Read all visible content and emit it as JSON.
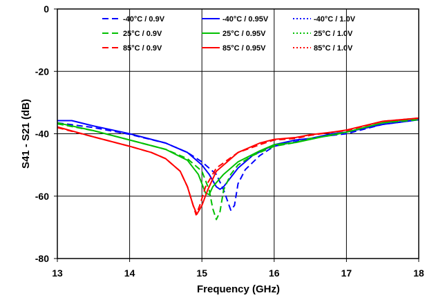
{
  "chart_data": {
    "type": "line",
    "title": "",
    "xlabel": "Frequency (GHz)",
    "ylabel": "S41 - S21 (dB)",
    "xlim": [
      13,
      18
    ],
    "ylim": [
      -80,
      0
    ],
    "x_ticks": [
      13,
      14,
      15,
      16,
      17,
      18
    ],
    "y_ticks": [
      0,
      -20,
      -40,
      -60,
      -80
    ],
    "x_tick_labels": [
      "13",
      "14",
      "15",
      "16",
      "17",
      "18"
    ],
    "y_tick_labels": [
      "0",
      "-20",
      "-40",
      "-60",
      "-80"
    ],
    "grid": true,
    "legend_position": "top",
    "series": [
      {
        "name": "-40°C / 0.9V",
        "color": "#0000ff",
        "dash": "dashed",
        "points": [
          [
            13,
            -36.5
          ],
          [
            13.5,
            -38
          ],
          [
            14,
            -40.2
          ],
          [
            14.5,
            -43
          ],
          [
            14.8,
            -46
          ],
          [
            15,
            -49
          ],
          [
            15.2,
            -53
          ],
          [
            15.3,
            -58
          ],
          [
            15.4,
            -64.5
          ],
          [
            15.45,
            -63
          ],
          [
            15.5,
            -56
          ],
          [
            15.6,
            -51.5
          ],
          [
            15.8,
            -47
          ],
          [
            16,
            -44
          ],
          [
            16.3,
            -42.5
          ],
          [
            16.5,
            -41.5
          ],
          [
            16.8,
            -40.5
          ],
          [
            17,
            -40
          ],
          [
            17.5,
            -37
          ],
          [
            18,
            -35.5
          ]
        ]
      },
      {
        "name": "-40°C / 0.95V",
        "color": "#0000ff",
        "dash": "solid",
        "points": [
          [
            13,
            -35.8
          ],
          [
            13.2,
            -35.8
          ],
          [
            13.5,
            -37.5
          ],
          [
            14,
            -40
          ],
          [
            14.5,
            -43
          ],
          [
            14.8,
            -46
          ],
          [
            15,
            -50
          ],
          [
            15.1,
            -53
          ],
          [
            15.15,
            -55
          ],
          [
            15.2,
            -57
          ],
          [
            15.25,
            -57.8
          ],
          [
            15.3,
            -57
          ],
          [
            15.4,
            -54
          ],
          [
            15.5,
            -51
          ],
          [
            15.7,
            -47
          ],
          [
            16,
            -43.5
          ],
          [
            16.3,
            -42
          ],
          [
            16.5,
            -41.5
          ],
          [
            16.8,
            -40
          ],
          [
            17,
            -39.5
          ],
          [
            17.5,
            -37
          ],
          [
            18,
            -35.5
          ]
        ]
      },
      {
        "name": "-40°C / 1.0V",
        "color": "#0000ff",
        "dash": "dotted",
        "points": []
      },
      {
        "name": "25°C / 0.9V",
        "color": "#00c000",
        "dash": "dashed",
        "points": [
          [
            13,
            -36.8
          ],
          [
            13.5,
            -39
          ],
          [
            14,
            -42
          ],
          [
            14.5,
            -45
          ],
          [
            14.8,
            -48
          ],
          [
            15,
            -52
          ],
          [
            15.1,
            -58
          ],
          [
            15.15,
            -64
          ],
          [
            15.2,
            -67.5
          ],
          [
            15.25,
            -65
          ],
          [
            15.3,
            -58
          ],
          [
            15.4,
            -53
          ],
          [
            15.5,
            -50
          ],
          [
            15.7,
            -47
          ],
          [
            16,
            -44
          ],
          [
            16.3,
            -42.8
          ],
          [
            16.5,
            -41.5
          ],
          [
            16.8,
            -40.5
          ],
          [
            17,
            -39.5
          ],
          [
            17.5,
            -36.5
          ],
          [
            18,
            -35.5
          ]
        ]
      },
      {
        "name": "25°C / 0.95V",
        "color": "#00c000",
        "dash": "solid",
        "points": [
          [
            13,
            -36.5
          ],
          [
            13.5,
            -39
          ],
          [
            14,
            -42
          ],
          [
            14.5,
            -45
          ],
          [
            14.8,
            -48.5
          ],
          [
            14.95,
            -53
          ],
          [
            15.05,
            -59
          ],
          [
            15.1,
            -59.5
          ],
          [
            15.15,
            -57
          ],
          [
            15.3,
            -53
          ],
          [
            15.5,
            -49
          ],
          [
            15.8,
            -45.5
          ],
          [
            16,
            -43.5
          ],
          [
            16.3,
            -42.8
          ],
          [
            16.5,
            -41.8
          ],
          [
            16.8,
            -40.3
          ],
          [
            17,
            -39.5
          ],
          [
            17.5,
            -36.5
          ],
          [
            18,
            -35
          ]
        ]
      },
      {
        "name": "25°C / 1.0V",
        "color": "#00c000",
        "dash": "dotted",
        "points": []
      },
      {
        "name": "85°C / 0.9V",
        "color": "#ff0000",
        "dash": "dashed",
        "points": [
          [
            13,
            -38
          ],
          [
            13.5,
            -41
          ],
          [
            14,
            -44
          ],
          [
            14.3,
            -46
          ],
          [
            14.5,
            -48
          ],
          [
            14.7,
            -52
          ],
          [
            14.8,
            -57
          ],
          [
            14.88,
            -63
          ],
          [
            14.92,
            -66
          ],
          [
            14.97,
            -63
          ],
          [
            15.05,
            -57
          ],
          [
            15.2,
            -51
          ],
          [
            15.5,
            -46
          ],
          [
            15.8,
            -43.5
          ],
          [
            16,
            -42
          ],
          [
            16.3,
            -41.5
          ],
          [
            16.5,
            -40.5
          ],
          [
            16.8,
            -39.5
          ],
          [
            17,
            -39
          ],
          [
            17.5,
            -36
          ],
          [
            18,
            -35
          ]
        ]
      },
      {
        "name": "85°C / 0.95V",
        "color": "#ff0000",
        "dash": "solid",
        "points": [
          [
            13,
            -37.8
          ],
          [
            13.5,
            -41
          ],
          [
            14,
            -44
          ],
          [
            14.3,
            -46
          ],
          [
            14.5,
            -48
          ],
          [
            14.7,
            -52
          ],
          [
            14.8,
            -57
          ],
          [
            14.88,
            -63
          ],
          [
            14.93,
            -65.8
          ],
          [
            15,
            -63
          ],
          [
            15.08,
            -58
          ],
          [
            15.2,
            -52
          ],
          [
            15.5,
            -46
          ],
          [
            15.8,
            -43
          ],
          [
            16,
            -41.8
          ],
          [
            16.3,
            -41.2
          ],
          [
            16.5,
            -40.3
          ],
          [
            16.8,
            -39.5
          ],
          [
            17,
            -38.8
          ],
          [
            17.5,
            -36
          ],
          [
            18,
            -35
          ]
        ]
      },
      {
        "name": "85°C / 1.0V",
        "color": "#ff0000",
        "dash": "dotted",
        "points": []
      }
    ]
  }
}
